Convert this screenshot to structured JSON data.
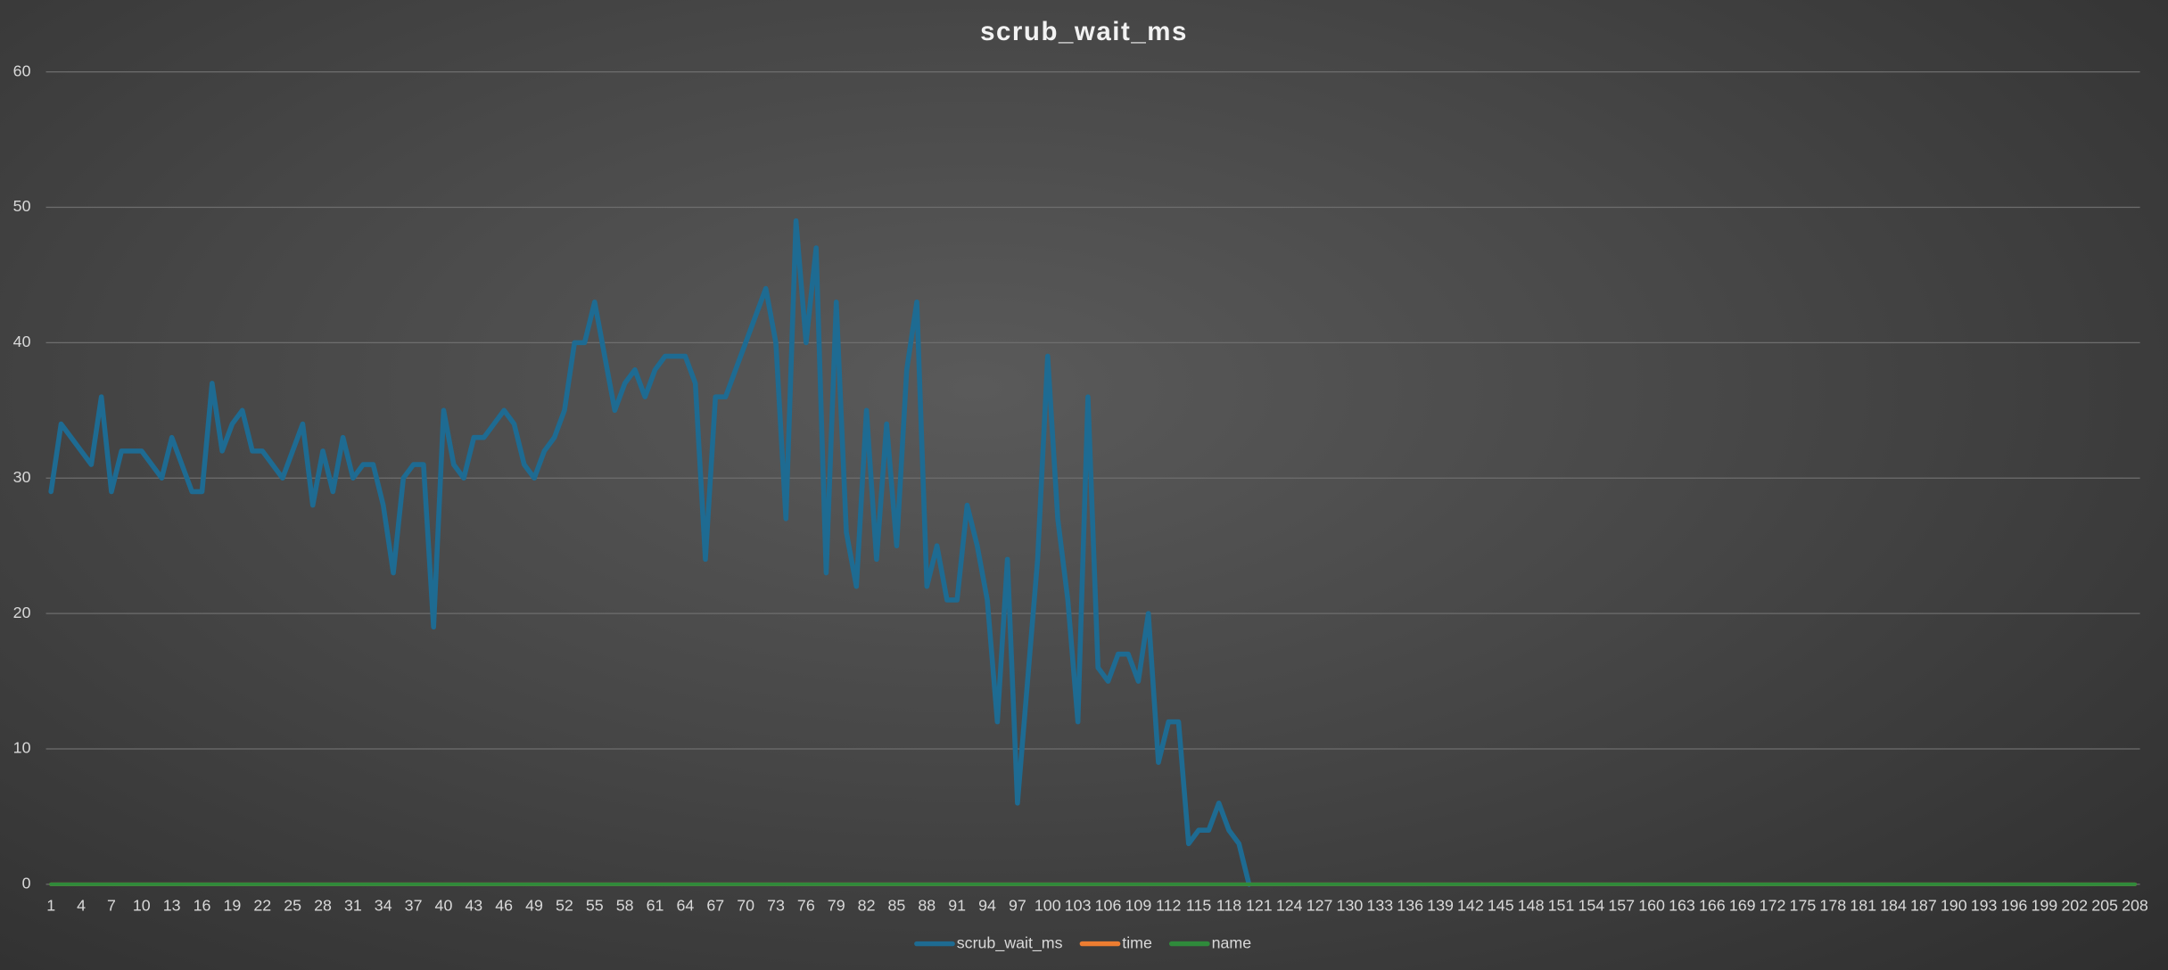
{
  "chart_data": {
    "type": "line",
    "title": "scrub_wait_ms",
    "categories": [
      "1",
      null,
      null,
      "4",
      null,
      null,
      "7",
      null,
      null,
      "10",
      null,
      null,
      "13",
      null,
      null,
      "16",
      null,
      null,
      "19",
      null,
      null,
      "22",
      null,
      null,
      "25",
      null,
      null,
      "28",
      null,
      null,
      "31",
      null,
      null,
      "34",
      null,
      null,
      "37",
      null,
      null,
      "40",
      null,
      null,
      "43",
      null,
      null,
      "46",
      null,
      null,
      "49",
      null,
      null,
      "52",
      null,
      null,
      "55",
      null,
      null,
      "58",
      null,
      null,
      "61",
      null,
      null,
      "64",
      null,
      null,
      "67",
      null,
      null,
      "70",
      null,
      null,
      "73",
      null,
      null,
      "76",
      null,
      null,
      "79",
      null,
      null,
      "82",
      null,
      null,
      "85",
      null,
      null,
      "88",
      null,
      null,
      "91",
      null,
      null,
      "94",
      null,
      null,
      "97",
      null,
      null,
      "100",
      null,
      null,
      "103",
      null,
      null,
      "106",
      null,
      null,
      "109",
      null,
      null,
      "112",
      null,
      null,
      "115",
      null,
      null,
      "118",
      null,
      null,
      "121",
      null,
      null,
      "124",
      null,
      null,
      "127",
      null,
      null,
      "130",
      null,
      null,
      "133",
      null,
      null,
      "136",
      null,
      null,
      "139",
      null,
      null,
      "142",
      null,
      null,
      "145",
      null,
      null,
      "148",
      null,
      null,
      "151",
      null,
      null,
      "154",
      null,
      null,
      "157",
      null,
      null,
      "160",
      null,
      null,
      "163",
      null,
      null,
      "166",
      null,
      null,
      "169",
      null,
      null,
      "172",
      null,
      null,
      "175",
      null,
      null,
      "178",
      null,
      null,
      "181",
      null,
      null,
      "184",
      null,
      null,
      "187",
      null,
      null,
      "190",
      null,
      null,
      "193",
      null,
      null,
      "196",
      null,
      null,
      "199",
      null,
      null,
      "202",
      null,
      null,
      "205",
      null,
      null,
      "208"
    ],
    "series": [
      {
        "name": "scrub_wait_ms",
        "color": "#1e6b92",
        "values": [
          29,
          34,
          33,
          32,
          31,
          36,
          29,
          32,
          32,
          32,
          31,
          30,
          33,
          31,
          29,
          29,
          37,
          32,
          34,
          35,
          32,
          32,
          31,
          30,
          32,
          34,
          28,
          32,
          29,
          33,
          30,
          31,
          31,
          28,
          23,
          30,
          31,
          31,
          19,
          35,
          31,
          30,
          33,
          33,
          34,
          35,
          34,
          31,
          30,
          32,
          33,
          35,
          40,
          40,
          43,
          39,
          35,
          37,
          38,
          36,
          38,
          39,
          39,
          39,
          37,
          24,
          36,
          36,
          38,
          40,
          42,
          44,
          40,
          27,
          49,
          40,
          47,
          23,
          43,
          26,
          22,
          35,
          24,
          34,
          25,
          38,
          43,
          22,
          25,
          21,
          21,
          28,
          25,
          21,
          12,
          24,
          6,
          15,
          24,
          39,
          27,
          21,
          12,
          36,
          16,
          15,
          17,
          17,
          15,
          20,
          9,
          12,
          12,
          3,
          4,
          4,
          6,
          4,
          3,
          0,
          null,
          null,
          null,
          null,
          null,
          null,
          null,
          null,
          null,
          null,
          null,
          null,
          null,
          null,
          null,
          null,
          null,
          null,
          null,
          null,
          null,
          null,
          null,
          null,
          null,
          null,
          null,
          null,
          null,
          null,
          null,
          null,
          null,
          null,
          null,
          null,
          null,
          null,
          null,
          null,
          null,
          null,
          null,
          null,
          null,
          null,
          null,
          null,
          null,
          null,
          null,
          null,
          null,
          null,
          null,
          null,
          null,
          null,
          null,
          null,
          null,
          null,
          null,
          null,
          null,
          null,
          null,
          null,
          null,
          null,
          null,
          null,
          null,
          null,
          null,
          null,
          null,
          null,
          null,
          null,
          null,
          null,
          null,
          null,
          null,
          null,
          null,
          null
        ]
      },
      {
        "name": "time",
        "color": "#ed7d31",
        "values": [
          0,
          0,
          0,
          0,
          0,
          0,
          0,
          0,
          0,
          0,
          0,
          0,
          0,
          0,
          0,
          0,
          0,
          0,
          0,
          0,
          0,
          0,
          0,
          0,
          0,
          0,
          0,
          0,
          0,
          0,
          0,
          0,
          0,
          0,
          0,
          0,
          0,
          0,
          0,
          0,
          0,
          0,
          0,
          0,
          0,
          0,
          0,
          0,
          0,
          0,
          0,
          0,
          0,
          0,
          0,
          0,
          0,
          0,
          0,
          0,
          0,
          0,
          0,
          0,
          0,
          0,
          0,
          0,
          0,
          0,
          0,
          0,
          0,
          0,
          0,
          0,
          0,
          0,
          0,
          0,
          0,
          0,
          0,
          0,
          0,
          0,
          0,
          0,
          0,
          0,
          0,
          0,
          0,
          0,
          0,
          0,
          0,
          0,
          0,
          0,
          0,
          0,
          0,
          0,
          0,
          0,
          0,
          0,
          0,
          0,
          0,
          0,
          0,
          0,
          0,
          0,
          0,
          0,
          0,
          0,
          0,
          0,
          0,
          0,
          0,
          0,
          0,
          0,
          0,
          0,
          0,
          0,
          0,
          0,
          0,
          0,
          0,
          0,
          0,
          0,
          0,
          0,
          0,
          0,
          0,
          0,
          0,
          0,
          0,
          0,
          0,
          0,
          0,
          0,
          0,
          0,
          0,
          0,
          0,
          0,
          0,
          0,
          0,
          0,
          0,
          0,
          0,
          0,
          0,
          0,
          0,
          0,
          0,
          0,
          0,
          0,
          0,
          0,
          0,
          0,
          0,
          0,
          0,
          0,
          0,
          0,
          0,
          0,
          0,
          0,
          0,
          0,
          0,
          0,
          0,
          0,
          0,
          0,
          0,
          0,
          0,
          0,
          0,
          0,
          0,
          0,
          0,
          0
        ]
      },
      {
        "name": "name",
        "color": "#2f8a3b",
        "values": [
          0,
          0,
          0,
          0,
          0,
          0,
          0,
          0,
          0,
          0,
          0,
          0,
          0,
          0,
          0,
          0,
          0,
          0,
          0,
          0,
          0,
          0,
          0,
          0,
          0,
          0,
          0,
          0,
          0,
          0,
          0,
          0,
          0,
          0,
          0,
          0,
          0,
          0,
          0,
          0,
          0,
          0,
          0,
          0,
          0,
          0,
          0,
          0,
          0,
          0,
          0,
          0,
          0,
          0,
          0,
          0,
          0,
          0,
          0,
          0,
          0,
          0,
          0,
          0,
          0,
          0,
          0,
          0,
          0,
          0,
          0,
          0,
          0,
          0,
          0,
          0,
          0,
          0,
          0,
          0,
          0,
          0,
          0,
          0,
          0,
          0,
          0,
          0,
          0,
          0,
          0,
          0,
          0,
          0,
          0,
          0,
          0,
          0,
          0,
          0,
          0,
          0,
          0,
          0,
          0,
          0,
          0,
          0,
          0,
          0,
          0,
          0,
          0,
          0,
          0,
          0,
          0,
          0,
          0,
          0,
          0,
          0,
          0,
          0,
          0,
          0,
          0,
          0,
          0,
          0,
          0,
          0,
          0,
          0,
          0,
          0,
          0,
          0,
          0,
          0,
          0,
          0,
          0,
          0,
          0,
          0,
          0,
          0,
          0,
          0,
          0,
          0,
          0,
          0,
          0,
          0,
          0,
          0,
          0,
          0,
          0,
          0,
          0,
          0,
          0,
          0,
          0,
          0,
          0,
          0,
          0,
          0,
          0,
          0,
          0,
          0,
          0,
          0,
          0,
          0,
          0,
          0,
          0,
          0,
          0,
          0,
          0,
          0,
          0,
          0,
          0,
          0,
          0,
          0,
          0,
          0,
          0,
          0,
          0,
          0,
          0,
          0,
          0,
          0,
          0,
          0,
          0,
          0
        ]
      }
    ],
    "ylim": [
      0,
      60
    ],
    "yticks": [
      0,
      10,
      20,
      30,
      40,
      50,
      60
    ],
    "grid": true,
    "legend": "bottom"
  }
}
